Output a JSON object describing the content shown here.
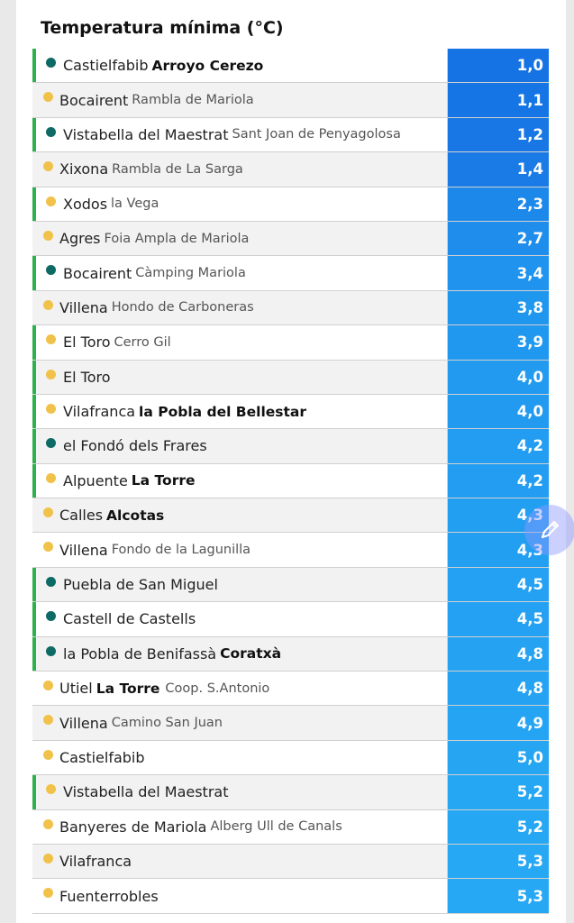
{
  "title": "Temperatura mínima (°C)",
  "colors": {
    "green_bar": "#2bb24c",
    "teal_dot": "#0e6a64",
    "yellow_dot": "#f1c24a"
  },
  "rows": [
    {
      "main": "Castielfabib",
      "sub": "Arroyo Cerezo",
      "sub_bold": true,
      "value": "1,0",
      "dot": "teal",
      "green": true,
      "color": "#1673e3"
    },
    {
      "main": "Bocairent",
      "sub": "Rambla de Mariola",
      "sub_bold": false,
      "value": "1,1",
      "dot": "yellow",
      "green": false,
      "color": "#1675e4"
    },
    {
      "main": "Vistabella del Maestrat",
      "sub": "Sant Joan de Penyagolosa",
      "sub_bold": false,
      "value": "1,2",
      "dot": "teal",
      "green": true,
      "color": "#1877e5"
    },
    {
      "main": "Xixona",
      "sub": "Rambla de La Sarga",
      "sub_bold": false,
      "value": "1,4",
      "dot": "yellow",
      "green": false,
      "color": "#1a7ae6"
    },
    {
      "main": "Xodos",
      "sub": "la Vega",
      "sub_bold": false,
      "value": "2,3",
      "dot": "yellow",
      "green": true,
      "color": "#1c88ea"
    },
    {
      "main": "Agres",
      "sub": "Foia Ampla de Mariola",
      "sub_bold": false,
      "value": "2,7",
      "dot": "yellow",
      "green": false,
      "color": "#1e8dec"
    },
    {
      "main": "Bocairent",
      "sub": "Càmping Mariola",
      "sub_bold": false,
      "value": "3,4",
      "dot": "teal",
      "green": true,
      "color": "#1f93ee"
    },
    {
      "main": "Villena",
      "sub": "Hondo de Carboneras",
      "sub_bold": false,
      "value": "3,8",
      "dot": "yellow",
      "green": false,
      "color": "#2097ef"
    },
    {
      "main": "El Toro",
      "sub": "Cerro Gil",
      "sub_bold": false,
      "value": "3,9",
      "dot": "yellow",
      "green": true,
      "color": "#2098ef"
    },
    {
      "main": "El Toro",
      "sub": "",
      "sub_bold": false,
      "value": "4,0",
      "dot": "yellow",
      "green": true,
      "color": "#219af0"
    },
    {
      "main": "Vilafranca",
      "sub": "la Pobla del Bellestar",
      "sub_bold": true,
      "value": "4,0",
      "dot": "yellow",
      "green": true,
      "color": "#219af0"
    },
    {
      "main": "el Fondó dels Frares",
      "sub": "",
      "sub_bold": false,
      "value": "4,2",
      "dot": "teal",
      "green": true,
      "color": "#229df1"
    },
    {
      "main": "Alpuente",
      "sub": "La Torre",
      "sub_bold": true,
      "value": "4,2",
      "dot": "yellow",
      "green": true,
      "color": "#229df1"
    },
    {
      "main": "Calles",
      "sub": "Alcotas",
      "sub_bold": true,
      "value": "4,3",
      "dot": "yellow",
      "green": false,
      "color": "#239ff1"
    },
    {
      "main": "Villena",
      "sub": "Fondo de la Lagunilla",
      "sub_bold": false,
      "value": "4,3",
      "dot": "yellow",
      "green": false,
      "color": "#239ff1"
    },
    {
      "main": "Puebla de San Miguel",
      "sub": "",
      "sub_bold": false,
      "value": "4,5",
      "dot": "teal",
      "green": true,
      "color": "#24a1f2"
    },
    {
      "main": "Castell de Castells",
      "sub": "",
      "sub_bold": false,
      "value": "4,5",
      "dot": "teal",
      "green": true,
      "color": "#24a1f2"
    },
    {
      "main": "la Pobla de Benifassà",
      "sub": "Coratxà",
      "sub_bold": true,
      "value": "4,8",
      "dot": "teal",
      "green": true,
      "color": "#25a3f2"
    },
    {
      "main": "Utiel",
      "sub": "La Torre",
      "sub_bold": true,
      "sub2": "Coop. S.Antonio",
      "value": "4,8",
      "dot": "yellow",
      "green": false,
      "color": "#25a3f2"
    },
    {
      "main": "Villena",
      "sub": "Camino San Juan",
      "sub_bold": false,
      "value": "4,9",
      "dot": "yellow",
      "green": false,
      "color": "#25a4f3"
    },
    {
      "main": "Castielfabib",
      "sub": "",
      "sub_bold": false,
      "value": "5,0",
      "dot": "yellow",
      "green": false,
      "color": "#26a5f3"
    },
    {
      "main": "Vistabella del Maestrat",
      "sub": "",
      "sub_bold": false,
      "value": "5,2",
      "dot": "yellow",
      "green": true,
      "color": "#26a7f3"
    },
    {
      "main": "Banyeres de Mariola",
      "sub": "Alberg Ull de Canals",
      "sub_bold": false,
      "value": "5,2",
      "dot": "yellow",
      "green": false,
      "color": "#26a7f3"
    },
    {
      "main": "Vilafranca",
      "sub": "",
      "sub_bold": false,
      "value": "5,3",
      "dot": "yellow",
      "green": false,
      "color": "#27a8f4"
    },
    {
      "main": "Fuenterrobles",
      "sub": "",
      "sub_bold": false,
      "value": "5,3",
      "dot": "yellow",
      "green": false,
      "color": "#27a8f4"
    }
  ],
  "fab_icon": "pencil-icon"
}
